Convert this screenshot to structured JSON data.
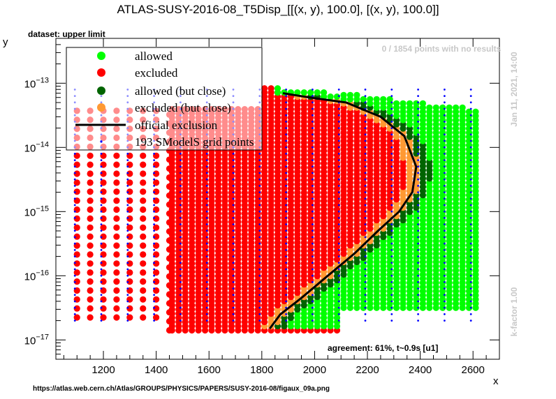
{
  "title": "ATLAS-SUSY-2016-08_T5Disp_[[(x, y), 100.0], [(x, y), 100.0]]",
  "dataset_label": "dataset: upper limit",
  "no_results_label": "0 / 1854 points with no results",
  "date_label": "Jan 11, 2021, 14:00",
  "kfactor_label": "k-factor 1.00",
  "agreement_label": "agreement: 61%, t~0.9s [u1]",
  "url_label": "https://atlas.web.cern.ch/Atlas/GROUPS/PHYSICS/PAPERS/SUSY-2016-08/figaux_09a.png",
  "colors": {
    "allowed": "#00ff00",
    "excluded": "#ff0000",
    "allowed_close": "#006400",
    "excluded_close": "#ff9933",
    "official": "#000000",
    "grid_points": "#0000ff",
    "faint_text": "#c8c8c8"
  },
  "chart_data": {
    "type": "scatter",
    "title": "ATLAS-SUSY-2016-08_T5Disp_[[(x, y), 100.0], [(x, y), 100.0]]",
    "xlabel": "x",
    "ylabel": "y",
    "xlim": [
      1020,
      2700
    ],
    "ylim": [
      5e-18,
      5e-13
    ],
    "yscale": "log",
    "x_ticks": [
      1200,
      1400,
      1600,
      1800,
      2000,
      2200,
      2400,
      2600
    ],
    "x_tick_labels": [
      "1200",
      "1400",
      "1600",
      "1800",
      "2000",
      "2200",
      "2400",
      "2600"
    ],
    "y_ticks": [
      1e-17,
      1e-16,
      1e-15,
      1e-14,
      1e-13
    ],
    "y_tick_labels": [
      {
        "base": "10",
        "exp": "−17"
      },
      {
        "base": "10",
        "exp": "−16"
      },
      {
        "base": "10",
        "exp": "−15"
      },
      {
        "base": "10",
        "exp": "−14"
      },
      {
        "base": "10",
        "exp": "−13"
      }
    ],
    "legend": {
      "placement": "top-left",
      "entries": [
        {
          "label": "allowed",
          "marker": "allowed"
        },
        {
          "label": "excluded",
          "marker": "excluded"
        },
        {
          "label": "allowed (but close)",
          "marker": "allowed_close"
        },
        {
          "label": "excluded (but close)",
          "marker": "excluded_close"
        },
        {
          "label": "official exclusion",
          "marker": "line"
        },
        {
          "label": "193 SModelS grid points",
          "marker": "grid"
        }
      ]
    },
    "grid_columns": [
      1100,
      1200,
      1300,
      1400,
      1500,
      1600,
      1700,
      1800,
      1900,
      2000,
      2100,
      2200,
      2300,
      2400,
      2500,
      2600
    ],
    "grid_y_range": [
      2e-17,
      1e-13
    ],
    "official_exclusion": [
      {
        "x": 1830,
        "y": 1.5e-17
      },
      {
        "x": 1870,
        "y": 2.5e-17
      },
      {
        "x": 1950,
        "y": 4.5e-17
      },
      {
        "x": 2050,
        "y": 1e-16
      },
      {
        "x": 2150,
        "y": 2.2e-16
      },
      {
        "x": 2240,
        "y": 5e-16
      },
      {
        "x": 2320,
        "y": 1e-15
      },
      {
        "x": 2370,
        "y": 2e-15
      },
      {
        "x": 2385,
        "y": 5e-15
      },
      {
        "x": 2340,
        "y": 1.5e-14
      },
      {
        "x": 2250,
        "y": 3e-14
      },
      {
        "x": 2120,
        "y": 5e-14
      },
      {
        "x": 1980,
        "y": 6e-14
      },
      {
        "x": 1880,
        "y": 7e-14
      }
    ]
  }
}
